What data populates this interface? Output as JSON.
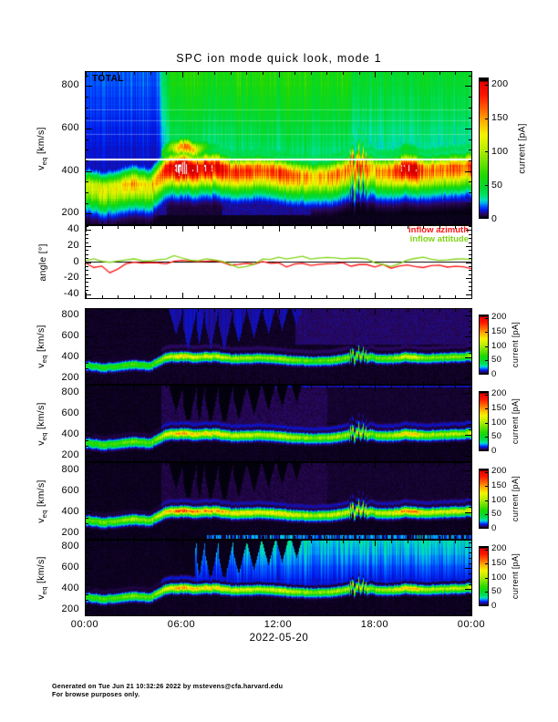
{
  "title": "SPC ion mode quick look, mode 1",
  "footer": {
    "line1": "Generated on Tue Jun 21 10:32:26 2022 by mstevens@cfa.harvard.edu",
    "line2": "For browse purposes only."
  },
  "x_axis": {
    "tick_labels": [
      "00:00",
      "06:00",
      "12:00",
      "18:00",
      "00:00"
    ],
    "tick_hours": [
      0,
      6,
      12,
      18,
      24
    ],
    "minor_tick_hours": 1,
    "date_label": "2022-05-20"
  },
  "colors": {
    "background": "#ffffff",
    "axis": "#000000",
    "inflow_azimuth": "#ff1414",
    "inflow_attitude": "#7fd413"
  },
  "chart_data": {
    "type": "heatmap",
    "description": "SPC ion-mode quick-look: five current spectrograms (TOTAL plus four channels) of current [pA] vs equivalent proton speed v_eq [km/s] vs time on 2022-05-20, plus inflow angle line plot",
    "y_axis": {
      "label_main": "v",
      "label_sub": "eq",
      "label_unit": " [km/s]"
    },
    "x_hours": [
      0,
      1,
      2,
      3,
      4,
      5,
      6,
      7,
      8,
      9,
      10,
      11,
      12,
      13,
      14,
      15,
      16,
      17,
      18,
      19,
      20,
      21,
      22,
      23,
      24
    ],
    "beam_velocity_kms": [
      335,
      315,
      325,
      345,
      330,
      415,
      420,
      410,
      425,
      400,
      400,
      408,
      395,
      385,
      375,
      380,
      395,
      445,
      405,
      398,
      418,
      405,
      408,
      418,
      422
    ],
    "beam_current_pA": [
      80,
      88,
      95,
      105,
      95,
      140,
      185,
      160,
      150,
      135,
      128,
      122,
      132,
      118,
      112,
      108,
      118,
      128,
      112,
      122,
      172,
      128,
      118,
      122,
      128
    ],
    "alpha_band": {
      "ratio": 1.22,
      "sigma_total": 26,
      "sigma_channel": 16
    },
    "icicles": [
      {
        "t": 5.6,
        "tip": 620,
        "w": 0.45
      },
      {
        "t": 6.35,
        "tip": 470,
        "w": 0.55
      },
      {
        "t": 7.05,
        "tip": 525,
        "w": 0.35
      },
      {
        "t": 7.75,
        "tip": 478,
        "w": 0.5
      },
      {
        "t": 8.6,
        "tip": 462,
        "w": 0.55
      },
      {
        "t": 9.5,
        "tip": 545,
        "w": 0.5
      },
      {
        "t": 10.45,
        "tip": 588,
        "w": 0.45
      },
      {
        "t": 11.35,
        "tip": 632,
        "w": 0.4
      },
      {
        "t": 12.2,
        "tip": 662,
        "w": 0.35
      },
      {
        "t": 13.1,
        "tip": 700,
        "w": 0.3
      }
    ],
    "colormap_pA": [
      [
        0,
        "#000006"
      ],
      [
        2,
        "#14032f"
      ],
      [
        5,
        "#2a0756"
      ],
      [
        8,
        "#1c0c92"
      ],
      [
        12,
        "#0018e8"
      ],
      [
        17,
        "#0050ff"
      ],
      [
        22,
        "#00a8f0"
      ],
      [
        27,
        "#00e0c0"
      ],
      [
        33,
        "#00e070"
      ],
      [
        45,
        "#00d830"
      ],
      [
        65,
        "#22d800"
      ],
      [
        85,
        "#74e400"
      ],
      [
        105,
        "#c0ee00"
      ],
      [
        125,
        "#f4f400"
      ],
      [
        145,
        "#ffb000"
      ],
      [
        165,
        "#ff5c00"
      ],
      [
        185,
        "#ff1400"
      ],
      [
        205,
        "#e00000"
      ],
      [
        232,
        "#c80000"
      ]
    ],
    "panels": [
      {
        "id": "total",
        "type": "heatmap",
        "annotation": "TOTAL",
        "bg": "total",
        "ylim_kms": [
          150,
          865
        ],
        "yticks": [
          200,
          400,
          600,
          800
        ],
        "white_line_kms": 455,
        "saturation_white": true,
        "intensity_scale": 1.35,
        "beam_sigma_up": 40,
        "beam_sigma_down": 62,
        "icicle_mode": "blue",
        "icicle_value": 13,
        "colorbar": {
          "label": "current [pA]",
          "ticks": [
            0,
            50,
            100,
            150,
            200
          ],
          "max_display": 200
        }
      },
      {
        "id": "inflow-angles",
        "type": "line",
        "ylabel": "angle [°]",
        "ylim_deg": [
          -45,
          45
        ],
        "yticks": [
          -40,
          -20,
          0,
          20,
          40
        ],
        "x_step_hours": 0.5,
        "zero_line": 0,
        "series": [
          {
            "name": "inflow azimuth",
            "color": "#ff1414",
            "values": [
              -2,
              -8,
              -5,
              -13,
              -9,
              -3,
              -1,
              -2,
              -1,
              -2,
              -1,
              0,
              1,
              2,
              1,
              0,
              1,
              0,
              -4,
              -2,
              -1,
              -2,
              0,
              -1,
              -2,
              -6,
              -3,
              -2,
              -4,
              -3,
              -2,
              -3,
              -2,
              -6,
              -3,
              -4,
              -5,
              -4,
              -7,
              -5,
              -4,
              -6,
              -8,
              -5,
              -4,
              -6,
              -5,
              -7,
              -8
            ]
          },
          {
            "name": "inflow attitude",
            "color": "#7fd413",
            "values": [
              1,
              3,
              1,
              0,
              1,
              2,
              3,
              1,
              1,
              2,
              5,
              7,
              4,
              3,
              2,
              3,
              2,
              1,
              -3,
              -6,
              -5,
              -2,
              3,
              4,
              5,
              4,
              5,
              7,
              4,
              5,
              6,
              4,
              3,
              4,
              5,
              3,
              0,
              -4,
              -5,
              -2,
              2,
              4,
              5,
              3,
              2,
              3,
              4,
              3,
              3
            ]
          }
        ]
      },
      {
        "id": "channel-1",
        "type": "heatmap",
        "bg": "p1",
        "ylim_kms": [
          150,
          865
        ],
        "yticks": [
          200,
          400,
          600,
          800
        ],
        "intensity_scale": 0.72,
        "beam_sigma_up": 19,
        "beam_sigma_down": 27,
        "icicle_mode": "blue",
        "icicle_value": 9,
        "alpha_amp": 6,
        "colorbar": {
          "label": "current [pA]",
          "ticks": [
            0,
            50,
            100,
            150,
            200
          ],
          "max_display": 200
        }
      },
      {
        "id": "channel-2",
        "type": "heatmap",
        "bg": "p2",
        "top_strip": true,
        "ylim_kms": [
          150,
          865
        ],
        "yticks": [
          200,
          400,
          600,
          800
        ],
        "intensity_scale": 0.82,
        "beam_sigma_up": 21,
        "beam_sigma_down": 29,
        "icicle_mode": "cut",
        "icicle_value": 0.4,
        "alpha_amp": 11,
        "colorbar": {
          "label": "current [pA]",
          "ticks": [
            0,
            50,
            100,
            150,
            200
          ],
          "max_display": 200
        }
      },
      {
        "id": "channel-3",
        "type": "heatmap",
        "bg": "p3",
        "bottom_strip": true,
        "ylim_kms": [
          150,
          865
        ],
        "yticks": [
          200,
          400,
          600,
          800
        ],
        "intensity_scale": 0.95,
        "beam_sigma_up": 21,
        "beam_sigma_down": 29,
        "icicle_mode": "cut",
        "icicle_value": 0.4,
        "alpha_amp": 10,
        "colorbar": {
          "label": "current [pA]",
          "ticks": [
            0,
            50,
            100,
            150,
            200
          ],
          "max_display": 200
        }
      },
      {
        "id": "channel-4",
        "type": "heatmap",
        "bg": "p4",
        "ylim_kms": [
          150,
          865
        ],
        "yticks": [
          200,
          400,
          600,
          800
        ],
        "intensity_scale": 0.85,
        "beam_sigma_up": 19,
        "beam_sigma_down": 27,
        "icicle_mode": "cut",
        "icicle_value": 1,
        "alpha_amp": 12,
        "colorbar": {
          "label": "current [pA]",
          "ticks": [
            0,
            50,
            100,
            150,
            200
          ],
          "max_display": 200
        }
      }
    ]
  }
}
